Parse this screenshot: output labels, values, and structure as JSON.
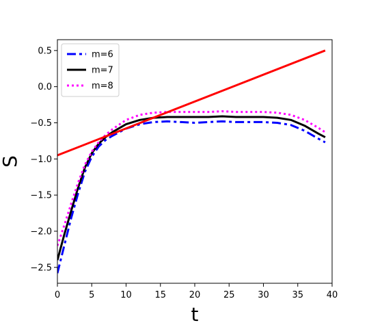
{
  "chart_data": {
    "type": "line",
    "title": "",
    "xlabel": "t",
    "ylabel": "S",
    "xlim": [
      0,
      40
    ],
    "ylim": [
      -2.72,
      0.65
    ],
    "xticks": [
      0,
      5,
      10,
      15,
      20,
      25,
      30,
      35,
      40
    ],
    "xtick_labels": [
      "0",
      "5",
      "10",
      "15",
      "20",
      "25",
      "30",
      "35",
      "40"
    ],
    "yticks": [
      0.5,
      0.0,
      -0.5,
      -1.0,
      -1.5,
      -2.0,
      -2.5
    ],
    "ytick_labels": [
      "0.5",
      "0.0",
      "−0.5",
      "−1.0",
      "−1.5",
      "−2.0",
      "−2.5"
    ],
    "grid": false,
    "legend_position": "top-left",
    "series": [
      {
        "name": "m=6",
        "color": "#0000ff",
        "style": "dashdot",
        "x": [
          0,
          1,
          2,
          3,
          4,
          5,
          6,
          7,
          8,
          10,
          12,
          14,
          16,
          18,
          20,
          22,
          24,
          26,
          28,
          30,
          32,
          34,
          36,
          38,
          39
        ],
        "y": [
          -2.58,
          -2.2,
          -1.82,
          -1.48,
          -1.18,
          -0.97,
          -0.83,
          -0.74,
          -0.68,
          -0.58,
          -0.52,
          -0.49,
          -0.48,
          -0.49,
          -0.5,
          -0.49,
          -0.48,
          -0.49,
          -0.49,
          -0.49,
          -0.5,
          -0.53,
          -0.61,
          -0.72,
          -0.77
        ]
      },
      {
        "name": "m=7",
        "color": "#000000",
        "style": "solid",
        "x": [
          0,
          1,
          2,
          3,
          4,
          5,
          6,
          7,
          8,
          10,
          12,
          14,
          16,
          18,
          20,
          22,
          24,
          26,
          28,
          30,
          32,
          34,
          36,
          38,
          39
        ],
        "y": [
          -2.4,
          -2.05,
          -1.72,
          -1.4,
          -1.12,
          -0.92,
          -0.79,
          -0.7,
          -0.63,
          -0.52,
          -0.46,
          -0.43,
          -0.42,
          -0.42,
          -0.42,
          -0.42,
          -0.41,
          -0.42,
          -0.42,
          -0.42,
          -0.43,
          -0.46,
          -0.54,
          -0.65,
          -0.7
        ]
      },
      {
        "name": "m=8",
        "color": "#ff00ff",
        "style": "dotted",
        "x": [
          0,
          1,
          2,
          3,
          4,
          5,
          6,
          7,
          8,
          10,
          12,
          14,
          16,
          18,
          20,
          22,
          24,
          26,
          28,
          30,
          32,
          34,
          36,
          38,
          39
        ],
        "y": [
          -2.2,
          -1.92,
          -1.62,
          -1.33,
          -1.08,
          -0.9,
          -0.77,
          -0.67,
          -0.59,
          -0.46,
          -0.39,
          -0.36,
          -0.35,
          -0.35,
          -0.35,
          -0.35,
          -0.34,
          -0.35,
          -0.35,
          -0.35,
          -0.36,
          -0.39,
          -0.46,
          -0.57,
          -0.63
        ]
      },
      {
        "color": "#ff0000",
        "style": "solid",
        "x": [
          0,
          39
        ],
        "y": [
          -0.95,
          0.5
        ]
      }
    ]
  }
}
